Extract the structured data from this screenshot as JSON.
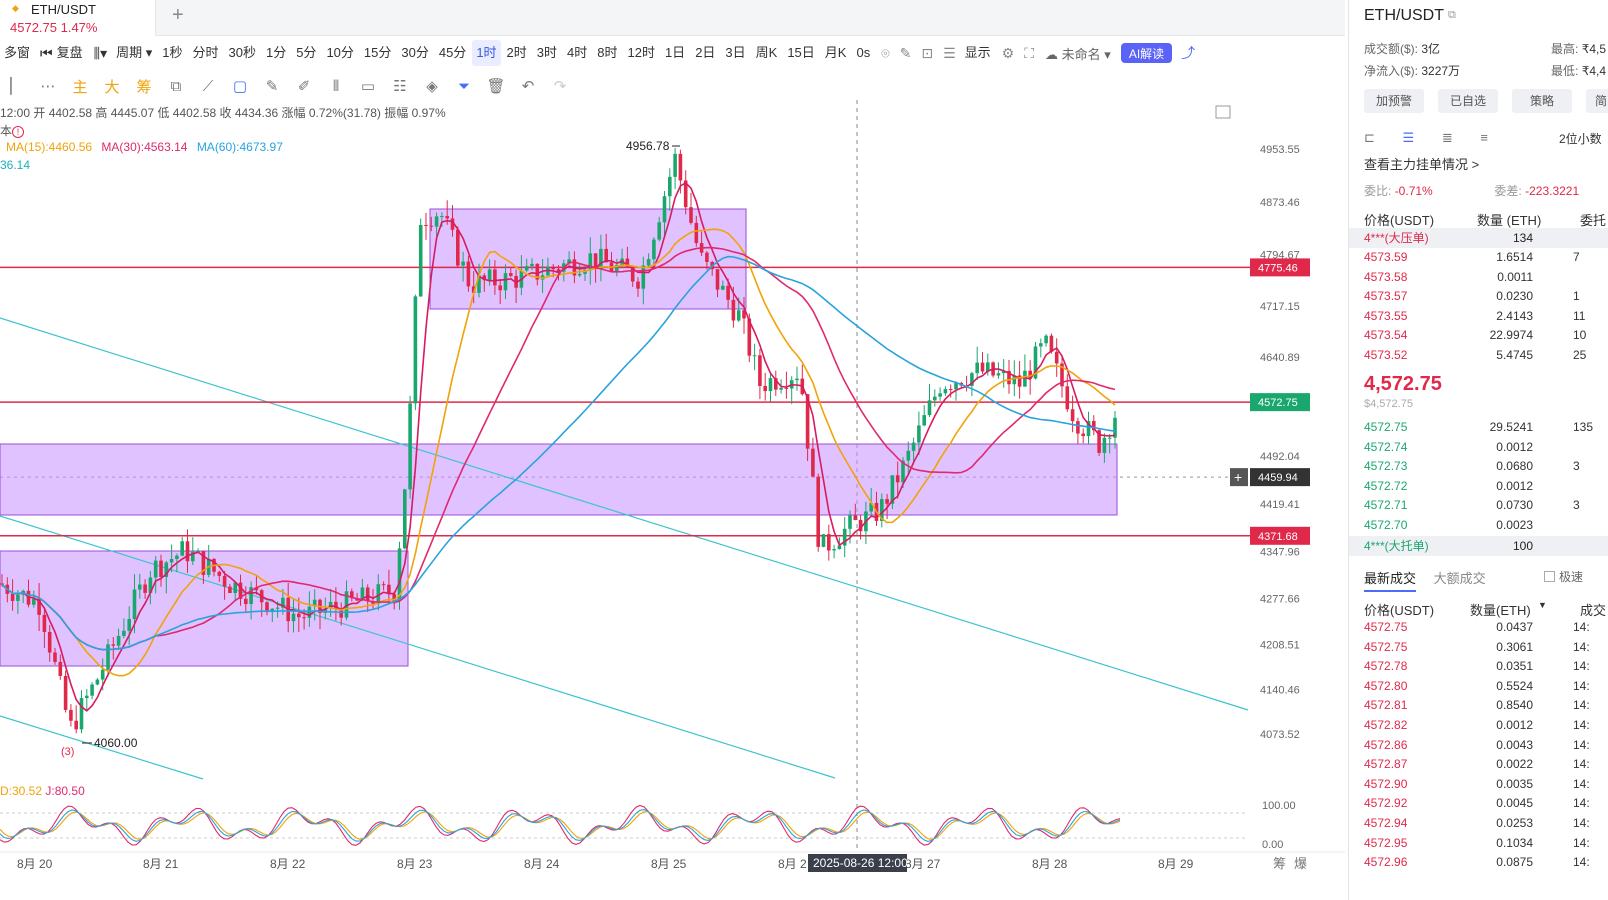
{
  "tab": {
    "symbol": "ETH/USDT",
    "price_change": "4572.75  1.47%"
  },
  "toolbar": {
    "items": [
      "多窗",
      "复盘",
      "周期",
      "1秒",
      "分时",
      "30秒",
      "1分",
      "5分",
      "10分",
      "15分",
      "30分",
      "45分",
      "1时",
      "2时",
      "3时",
      "4时",
      "8时",
      "12时",
      "1日",
      "2日",
      "3日",
      "周K",
      "15日",
      "月K",
      "0s"
    ],
    "active_index": 12,
    "display_label": "显示",
    "unnamed_label": "未命名",
    "ai_label": "AI解读"
  },
  "drawtools": {
    "items": [
      "主",
      "大",
      "筹"
    ]
  },
  "info": {
    "line": "12:00 开 4402.58 高 4445.07 低 4402.58 收 4434.36 涨幅 0.72%(31.78) 振幅 0.97%",
    "sub": "本",
    "ma15": "MA(15):4460.56",
    "ma30": "MA(30):4563.14",
    "ma60": "MA(60):4673.97",
    "ma_extra": "36.14",
    "kdj_d": "D:30.52",
    "kdj_j": "J:80.50"
  },
  "chart_data": {
    "type": "candlestick",
    "symbol": "ETH/USDT",
    "interval": "1时",
    "price_axis_ticks": [
      4953.55,
      4873.46,
      4794.67,
      4717.15,
      4640.89,
      4492.04,
      4419.41,
      4347.96,
      4277.66,
      4208.51,
      4140.46,
      4073.52
    ],
    "x_axis_labels": [
      "8月 20",
      "8月 21",
      "8月 22",
      "8月 23",
      "8月 24",
      "8月 25",
      "8月 2",
      "8月 27",
      "8月 28",
      "8月 29"
    ],
    "crosshair_time": "2025-08-26 12:00",
    "crosshair_price": "4459.94",
    "last_price_tag": "4572.75",
    "horizontal_lines": [
      4775.46,
      4572.75,
      4371.68
    ],
    "annotations": [
      "4956.78",
      "4060.00",
      "(3)"
    ],
    "kdj_axis_ticks": [
      "100.00",
      "0.00"
    ],
    "bottom_icons": [
      "筹",
      "爆"
    ],
    "moving_averages": [
      "MA(15)",
      "MA(30)",
      "MA(60)"
    ]
  },
  "right_panel": {
    "symbol": "ETH/USDT",
    "volume_label": "成交额($):",
    "volume_value": "3亿",
    "high_label": "最高:",
    "high_value": "₹4,5",
    "netflow_label": "净流入($):",
    "netflow_value": "3227万",
    "low_label": "最低:",
    "low_value": "₹4,4",
    "buttons": [
      "加预警",
      "已自选",
      "策略",
      "简"
    ],
    "decimals": "2位小数",
    "view_main": "查看主力挂单情况 >",
    "ratio_label": "委比:",
    "ratio_value": "-0.71%",
    "diff_label": "委差:",
    "diff_value": "-223.3221",
    "ob_header": {
      "price": "价格(USDT)",
      "qty": "数量 (ETH)",
      "total": "委托"
    },
    "ask_tag": {
      "label": "4***(大压单)",
      "qty": "134"
    },
    "asks": [
      {
        "p": "4573.59",
        "q": "1.6514",
        "t": "7"
      },
      {
        "p": "4573.58",
        "q": "0.0011",
        "t": ""
      },
      {
        "p": "4573.57",
        "q": "0.0230",
        "t": "1"
      },
      {
        "p": "4573.55",
        "q": "2.4143",
        "t": "11"
      },
      {
        "p": "4573.54",
        "q": "22.9974",
        "t": "10"
      },
      {
        "p": "4573.52",
        "q": "5.4745",
        "t": "25"
      }
    ],
    "last_price": "4,572.75",
    "last_sub": "$4,572.75",
    "bids": [
      {
        "p": "4572.75",
        "q": "29.5241",
        "t": "135"
      },
      {
        "p": "4572.74",
        "q": "0.0012",
        "t": ""
      },
      {
        "p": "4572.73",
        "q": "0.0680",
        "t": "3"
      },
      {
        "p": "4572.72",
        "q": "0.0012",
        "t": ""
      },
      {
        "p": "4572.71",
        "q": "0.0730",
        "t": "3"
      },
      {
        "p": "4572.70",
        "q": "0.0023",
        "t": ""
      }
    ],
    "bid_tag": {
      "label": "4***(大托单)",
      "qty": "100"
    },
    "trade_tabs": [
      "最新成交",
      "大额成交"
    ],
    "fast_label": "极速",
    "trade_header": {
      "price": "价格(USDT)",
      "qty": "数量(ETH)",
      "time": "成交"
    },
    "trades": [
      {
        "p": "4572.75",
        "q": "0.0437"
      },
      {
        "p": "4572.75",
        "q": "0.3061"
      },
      {
        "p": "4572.78",
        "q": "0.0351"
      },
      {
        "p": "4572.80",
        "q": "0.5524"
      },
      {
        "p": "4572.81",
        "q": "0.8540"
      },
      {
        "p": "4572.82",
        "q": "0.0012"
      },
      {
        "p": "4572.86",
        "q": "0.0043"
      },
      {
        "p": "4572.87",
        "q": "0.0022"
      },
      {
        "p": "4572.90",
        "q": "0.0035"
      },
      {
        "p": "4572.92",
        "q": "0.0045"
      },
      {
        "p": "4572.94",
        "q": "0.0253"
      },
      {
        "p": "4572.95",
        "q": "0.1034"
      },
      {
        "p": "4572.96",
        "q": "0.0875"
      }
    ],
    "trade_time_prefix": "14:"
  }
}
